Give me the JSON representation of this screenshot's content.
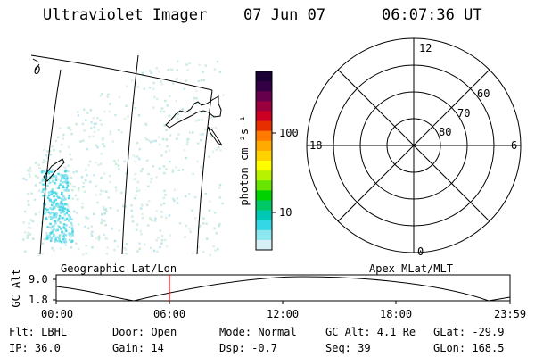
{
  "header": {
    "instrument": "Ultraviolet Imager",
    "date": "07 Jun 07",
    "time": "06:07:36 UT"
  },
  "geographic_panel": {
    "label": "Geographic Lat/Lon",
    "corner_glyph": "O"
  },
  "colorbar": {
    "unit_label": "photon cm⁻²s⁻¹",
    "ticks": [
      "100",
      "10"
    ],
    "colors": [
      "#1a0033",
      "#330044",
      "#66004d",
      "#99003d",
      "#cc0022",
      "#e62e00",
      "#ff7a00",
      "#ffaa00",
      "#ffd200",
      "#ffff00",
      "#b9f200",
      "#66e600",
      "#00d200",
      "#00c864",
      "#00c8b4",
      "#33d7e6",
      "#8ce6f0",
      "#d7f0f5"
    ]
  },
  "polar_panel": {
    "label": "Apex MLat/MLT",
    "mlt_labels": {
      "top": "12",
      "left": "18",
      "right": "6",
      "bottom": "0"
    },
    "lat_labels": [
      "60",
      "70",
      "80"
    ]
  },
  "altitude_plot": {
    "y_axis_label": "GC Alt",
    "y_ticks": [
      "9.0",
      "1.8"
    ],
    "x_ticks": [
      "00:00",
      "06:00",
      "12:00",
      "18:00",
      "23:59"
    ],
    "marker_time": "06:07",
    "marker_color": "#ff0000"
  },
  "info": {
    "filter": "Flt: LBHL",
    "door": "Door: Open",
    "mode": "Mode: Normal",
    "gc_alt": "GC Alt: 4.1 Re",
    "glat": "GLat: -29.9",
    "ip": "IP: 36.0",
    "gain": "Gain: 14",
    "dsp": "Dsp:   -0.7",
    "seq": "Seq: 39",
    "glon": "GLon: 168.5"
  }
}
